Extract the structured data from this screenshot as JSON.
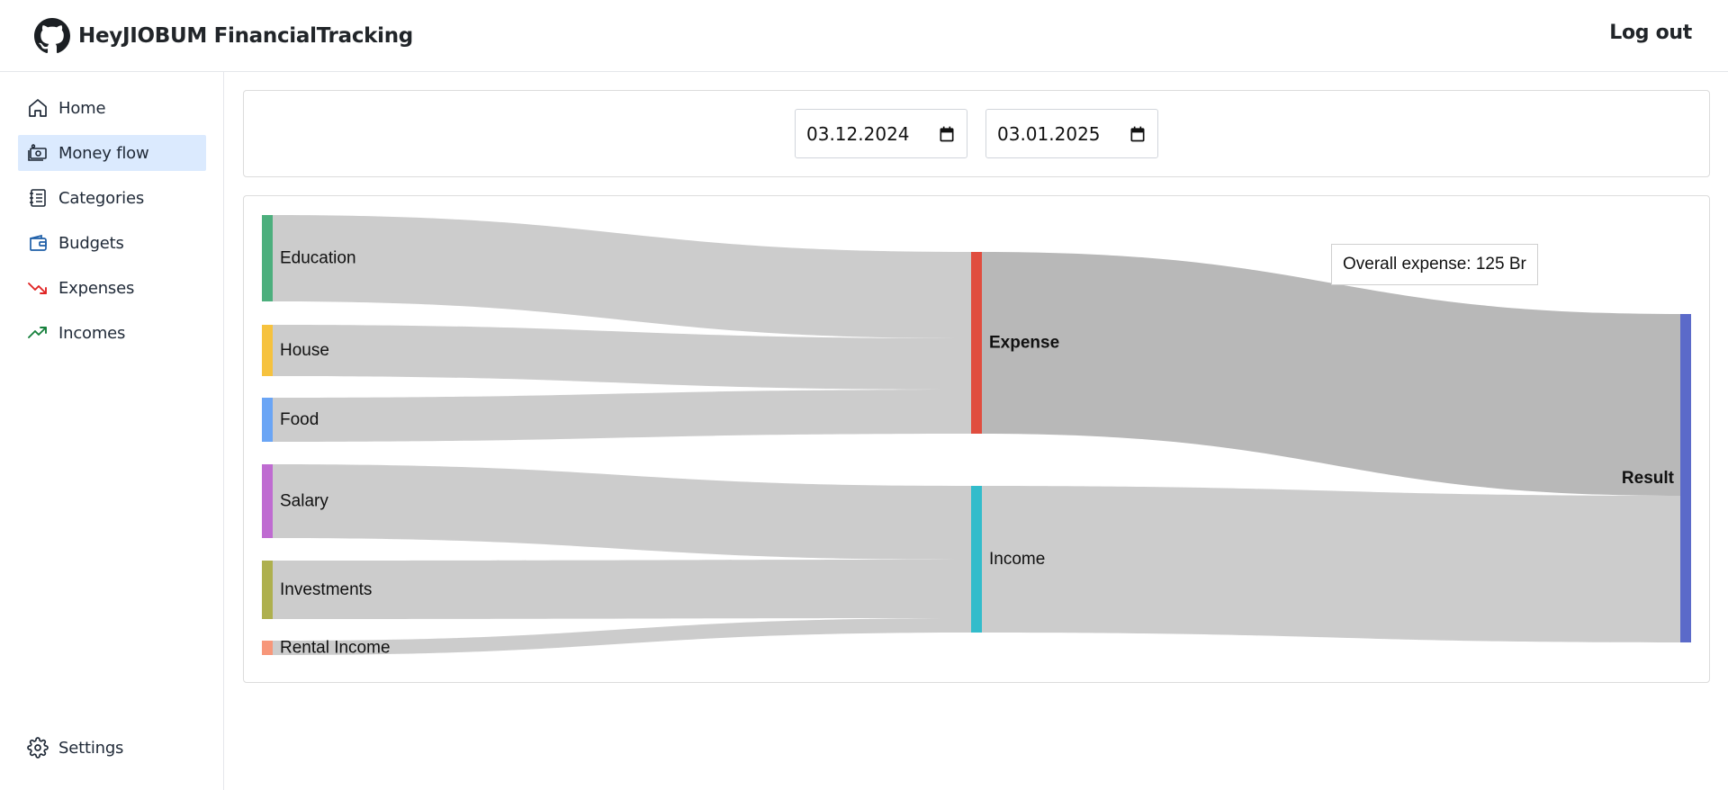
{
  "header": {
    "app_title": "HeyJIOBUM FinancialTracking",
    "logout_label": "Log out"
  },
  "sidebar": {
    "items": [
      {
        "label": "Home",
        "icon": "home-icon"
      },
      {
        "label": "Money flow",
        "icon": "money-icon",
        "active": true
      },
      {
        "label": "Categories",
        "icon": "list-icon"
      },
      {
        "label": "Budgets",
        "icon": "wallet-icon"
      },
      {
        "label": "Expenses",
        "icon": "trend-down-icon"
      },
      {
        "label": "Incomes",
        "icon": "trend-up-icon"
      }
    ],
    "settings_label": "Settings"
  },
  "filters": {
    "date_from": "03.12.2024",
    "date_to": "03.01.2025"
  },
  "chart_data": {
    "type": "sankey",
    "nodes": [
      {
        "name": "Education",
        "color": "#4caf7d"
      },
      {
        "name": "House",
        "color": "#f6c23e"
      },
      {
        "name": "Food",
        "color": "#6aa5f5"
      },
      {
        "name": "Salary",
        "color": "#bf6bd1"
      },
      {
        "name": "Investments",
        "color": "#aeb04e"
      },
      {
        "name": "Rental Income",
        "color": "#f7977a"
      },
      {
        "name": "Expense",
        "color": "#e04d3f"
      },
      {
        "name": "Income",
        "color": "#33bccb"
      },
      {
        "name": "Result",
        "color": "#5b6ac9"
      }
    ],
    "links": [
      {
        "source": "Education",
        "target": "Expense"
      },
      {
        "source": "House",
        "target": "Expense"
      },
      {
        "source": "Food",
        "target": "Expense"
      },
      {
        "source": "Salary",
        "target": "Income"
      },
      {
        "source": "Investments",
        "target": "Income"
      },
      {
        "source": "Rental Income",
        "target": "Income"
      },
      {
        "source": "Expense",
        "target": "Result",
        "highlighted": true
      },
      {
        "source": "Income",
        "target": "Result"
      }
    ],
    "tooltip": "Overall expense: 125 Br"
  }
}
